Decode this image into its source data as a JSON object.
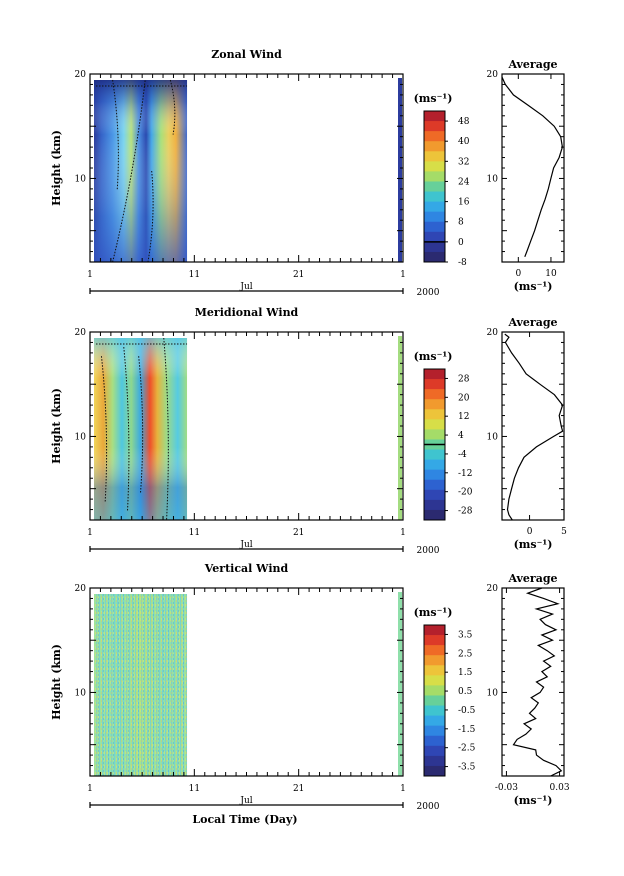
{
  "chart_data": [
    {
      "type": "heatmap",
      "title": "Zonal Wind",
      "ylabel": "Height (km)",
      "ylim": [
        2,
        20
      ],
      "yticks": [
        10,
        20
      ],
      "xticks": [
        "1",
        "11",
        "21",
        "1"
      ],
      "month_label": "Jul",
      "year_label": "2000",
      "colorbar": {
        "unit": "(ms⁻¹)",
        "labels": [
          "48",
          "40",
          "32",
          "24",
          "16",
          "8",
          "0",
          "-8"
        ],
        "min": -8,
        "max": 52,
        "zero_line": 0
      },
      "profile": {
        "title": "Average",
        "xlabel": "(ms⁻¹)",
        "xticks": [
          "0",
          "10"
        ],
        "xlim": [
          -5,
          14
        ],
        "height": [
          2.5,
          3,
          4,
          5,
          6,
          7,
          8,
          9,
          10,
          11,
          12,
          13,
          14,
          15,
          16,
          17,
          18,
          19,
          19.7
        ],
        "values": [
          2.0,
          2.6,
          3.8,
          5.0,
          6.0,
          7.0,
          8.2,
          9.2,
          10.0,
          10.8,
          12.5,
          13.5,
          13.0,
          11.0,
          7.5,
          3.0,
          -1.5,
          -4.0,
          -5.0
        ]
      }
    },
    {
      "type": "heatmap",
      "title": "Meridional Wind",
      "ylabel": "Height (km)",
      "ylim": [
        2,
        20
      ],
      "yticks": [
        10,
        20
      ],
      "xticks": [
        "1",
        "11",
        "21",
        "1"
      ],
      "month_label": "Jul",
      "year_label": "2000",
      "colorbar": {
        "unit": "(ms⁻¹)",
        "labels": [
          "28",
          "20",
          "12",
          "4",
          "-4",
          "-12",
          "-20",
          "-28"
        ],
        "min": -32,
        "max": 32,
        "zero_line": 0
      },
      "profile": {
        "title": "Average",
        "xlabel": "(ms⁻¹)",
        "xticks": [
          "0",
          "5"
        ],
        "xlim": [
          -4,
          5
        ],
        "height": [
          2,
          2.5,
          3,
          4,
          5,
          6,
          7,
          8,
          9,
          10,
          10.5,
          11,
          12,
          13,
          14,
          15,
          16,
          17,
          18,
          19,
          19.5,
          19.8
        ],
        "values": [
          -2.5,
          -3.0,
          -3.2,
          -3.0,
          -2.6,
          -2.2,
          -1.6,
          -0.8,
          1.0,
          3.5,
          4.8,
          4.6,
          4.3,
          4.8,
          3.6,
          1.5,
          -0.5,
          -1.5,
          -2.6,
          -3.5,
          -3.0,
          -3.6
        ]
      }
    },
    {
      "type": "heatmap",
      "title": "Vertical Wind",
      "ylabel": "Height (km)",
      "xlabel": "Local Time (Day)",
      "ylim": [
        2,
        20
      ],
      "yticks": [
        10,
        20
      ],
      "xticks": [
        "1",
        "11",
        "21",
        "1"
      ],
      "month_label": "Jul",
      "year_label": "2000",
      "colorbar": {
        "unit": "(ms⁻¹)",
        "labels": [
          "3.5",
          "2.5",
          "1.5",
          "0.5",
          "-0.5",
          "-1.5",
          "-2.5",
          "-3.5"
        ],
        "min": -4,
        "max": 4
      },
      "profile": {
        "title": "Average",
        "xlabel": "(ms⁻¹)",
        "xticks": [
          "-0.03",
          "0.03"
        ],
        "xlim": [
          -0.035,
          0.035
        ],
        "height": [
          2,
          2.5,
          3,
          3.5,
          4,
          4.5,
          5,
          5.5,
          6,
          6.5,
          7,
          7.5,
          8,
          8.5,
          9,
          9.5,
          10,
          10.5,
          11,
          11.5,
          12,
          12.5,
          13,
          13.5,
          14,
          14.5,
          15,
          15.5,
          16,
          16.5,
          17,
          17.5,
          18,
          18.5,
          19,
          19.5,
          20
        ],
        "values": [
          0.02,
          0.032,
          0.026,
          0.012,
          0.004,
          0.003,
          -0.022,
          -0.018,
          -0.008,
          -0.002,
          -0.01,
          0.003,
          -0.004,
          0.002,
          0.006,
          -0.002,
          0.008,
          0.012,
          0.004,
          0.016,
          0.01,
          0.02,
          0.012,
          0.024,
          0.016,
          0.006,
          0.022,
          0.01,
          0.026,
          0.014,
          0.008,
          0.022,
          0.004,
          0.028,
          0.012,
          -0.006,
          0.01
        ]
      }
    }
  ]
}
